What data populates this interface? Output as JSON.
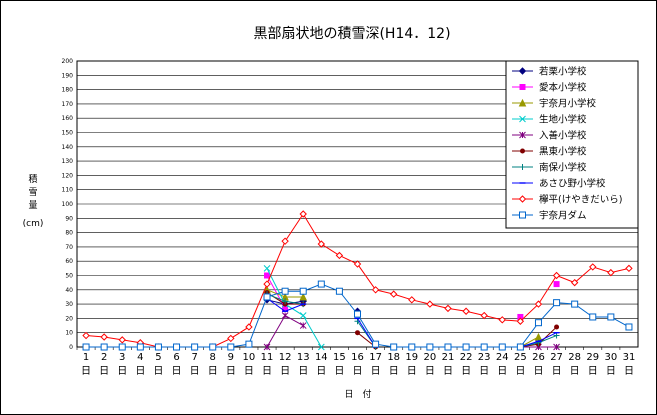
{
  "chart_data": {
    "type": "line",
    "title": "黒部扇状地の積雪深(H14．12)",
    "ylabel": "積雪量(cm)",
    "xlabel": "日　付",
    "ylim": [
      0,
      200
    ],
    "yticks": [
      0,
      10,
      20,
      30,
      40,
      50,
      60,
      70,
      80,
      90,
      100,
      110,
      120,
      130,
      140,
      150,
      160,
      170,
      180,
      190,
      200
    ],
    "grid": true,
    "legend": "right",
    "categories": [
      "1",
      "2",
      "3",
      "4",
      "5",
      "6",
      "7",
      "8",
      "9",
      "10",
      "11",
      "12",
      "13",
      "14",
      "15",
      "16",
      "17",
      "18",
      "19",
      "20",
      "21",
      "22",
      "23",
      "24",
      "25",
      "26",
      "27",
      "28",
      "29",
      "30",
      "31"
    ],
    "category_suffix": "日",
    "series": [
      {
        "name": "若栗小学校",
        "color": "#000080",
        "marker": "diamond",
        "values": [
          null,
          null,
          null,
          null,
          null,
          null,
          null,
          null,
          null,
          null,
          33,
          30,
          32,
          null,
          null,
          25,
          null,
          null,
          null,
          null,
          null,
          null,
          null,
          null,
          null,
          null,
          null,
          null,
          null,
          null,
          null
        ]
      },
      {
        "name": "愛本小学校",
        "color": "#ff00ff",
        "marker": "square",
        "values": [
          null,
          null,
          null,
          null,
          null,
          null,
          null,
          null,
          null,
          null,
          50,
          27,
          null,
          null,
          null,
          null,
          null,
          null,
          null,
          null,
          null,
          null,
          null,
          null,
          21,
          null,
          44,
          null,
          null,
          null,
          null
        ]
      },
      {
        "name": "宇奈月小学校",
        "color": "#999900",
        "marker": "triangle",
        "values": [
          null,
          null,
          null,
          null,
          null,
          null,
          null,
          null,
          null,
          null,
          40,
          35,
          35,
          null,
          null,
          null,
          null,
          null,
          null,
          null,
          null,
          null,
          null,
          null,
          0,
          7,
          null,
          null,
          null,
          null,
          null
        ]
      },
      {
        "name": "生地小学校",
        "color": "#00cccc",
        "marker": "x",
        "values": [
          null,
          null,
          null,
          null,
          null,
          null,
          null,
          null,
          null,
          null,
          55,
          30,
          22,
          0,
          null,
          null,
          null,
          null,
          null,
          null,
          null,
          null,
          null,
          null,
          null,
          null,
          null,
          null,
          null,
          null,
          null
        ]
      },
      {
        "name": "入善小学校",
        "color": "#800080",
        "marker": "star",
        "values": [
          null,
          null,
          null,
          null,
          null,
          null,
          null,
          null,
          null,
          null,
          0,
          22,
          15,
          null,
          null,
          null,
          null,
          null,
          null,
          null,
          null,
          null,
          null,
          null,
          0,
          0,
          0,
          null,
          null,
          null,
          null
        ]
      },
      {
        "name": "黒東小学校",
        "color": "#800000",
        "marker": "circle",
        "values": [
          null,
          null,
          null,
          null,
          null,
          null,
          null,
          null,
          null,
          null,
          38,
          30,
          30,
          null,
          null,
          10,
          0,
          null,
          null,
          null,
          null,
          null,
          null,
          null,
          0,
          2,
          14,
          null,
          null,
          null,
          null
        ]
      },
      {
        "name": "南保小学校",
        "color": "#008080",
        "marker": "plus",
        "values": [
          null,
          null,
          null,
          null,
          null,
          null,
          null,
          null,
          null,
          null,
          37,
          32,
          30,
          null,
          null,
          18,
          0,
          null,
          null,
          null,
          null,
          null,
          null,
          null,
          0,
          3,
          8,
          null,
          null,
          null,
          null
        ]
      },
      {
        "name": "あさひ野小学校",
        "color": "#0000ff",
        "marker": "dash",
        "values": [
          null,
          null,
          null,
          null,
          null,
          null,
          null,
          null,
          null,
          null,
          34,
          25,
          30,
          null,
          null,
          20,
          0,
          null,
          null,
          null,
          null,
          null,
          null,
          null,
          0,
          4,
          10,
          null,
          null,
          null,
          null
        ]
      },
      {
        "name": "欅平(けやきだいら)",
        "color": "#ff0000",
        "marker": "hollow-diamond",
        "values": [
          8,
          7,
          5,
          3,
          0,
          0,
          0,
          0,
          6,
          14,
          44,
          74,
          93,
          72,
          64,
          58,
          40,
          37,
          33,
          30,
          27,
          25,
          22,
          19,
          18,
          30,
          50,
          45,
          56,
          52,
          55
        ]
      },
      {
        "name": "宇奈月ダム",
        "color": "#0066cc",
        "marker": "hollow-square",
        "values": [
          0,
          0,
          0,
          0,
          0,
          0,
          0,
          0,
          0,
          2,
          35,
          39,
          39,
          44,
          39,
          23,
          2,
          0,
          0,
          0,
          0,
          0,
          0,
          0,
          0,
          17,
          31,
          30,
          21,
          21,
          14
        ]
      }
    ]
  }
}
